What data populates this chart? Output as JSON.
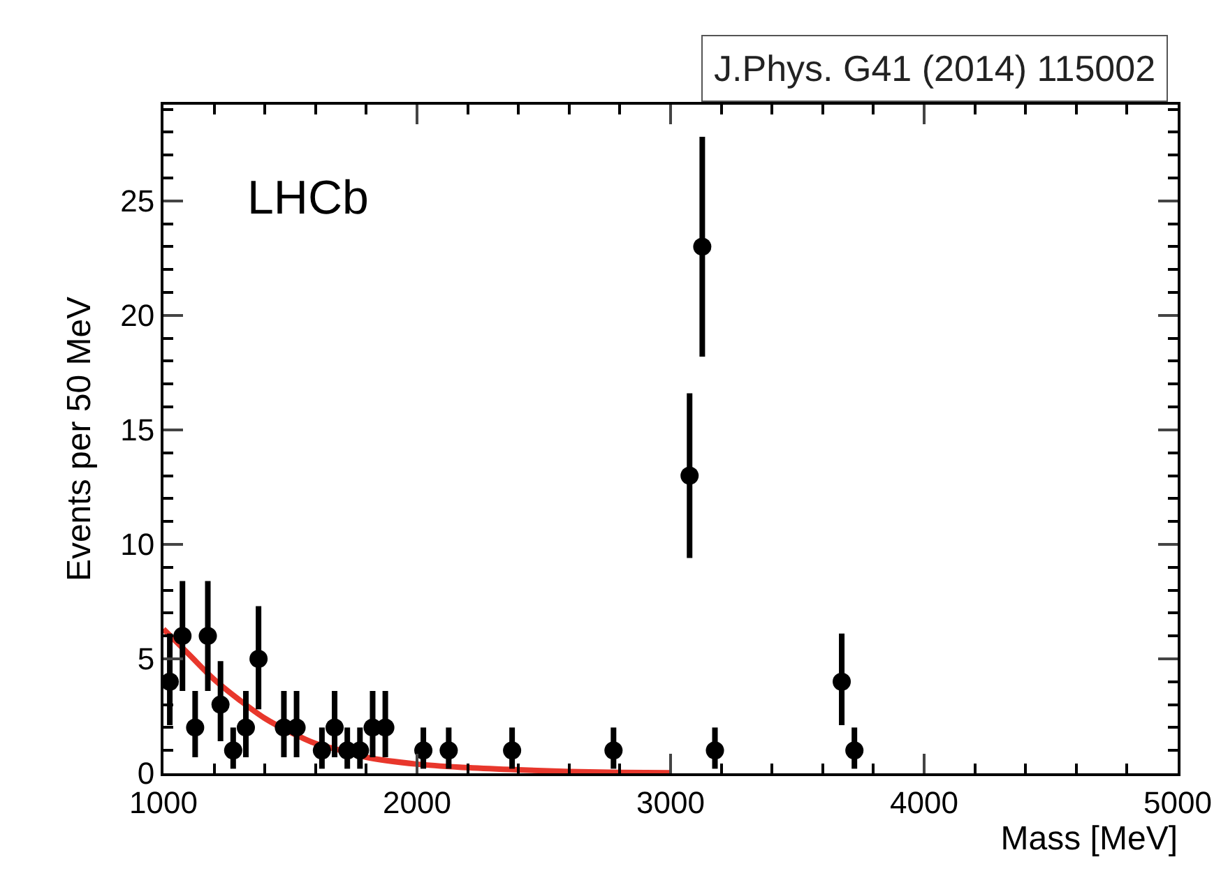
{
  "chart_data": {
    "type": "scatter",
    "xlabel": "Mass [MeV]",
    "ylabel": "Events per 50 MeV",
    "annotations": [
      "LHCb",
      "J.Phys. G41 (2014) 115002"
    ],
    "xlim": [
      1000,
      5000
    ],
    "xticks": [
      1000,
      2000,
      3000,
      4000,
      5000
    ],
    "ylim": [
      0,
      29.2
    ],
    "yticks": [
      0,
      5,
      10,
      15,
      20,
      25
    ],
    "marker": "circle",
    "series": [
      {
        "color": "#000000",
        "x": [
          1025,
          1075,
          1125,
          1175,
          1225,
          1275,
          1325,
          1375,
          1475,
          1525,
          1625,
          1675,
          1725,
          1775,
          1825,
          1875,
          2025,
          2125,
          2375,
          2775,
          3075,
          3125,
          3175,
          3675,
          3725
        ],
        "values": [
          4,
          6,
          2,
          6,
          3,
          1,
          2,
          5,
          2,
          2,
          1,
          2,
          1,
          1,
          2,
          2,
          1,
          1,
          1,
          1,
          13,
          23,
          1,
          4,
          1
        ],
        "errors": [
          [
            2.1,
            6.1
          ],
          [
            3.6,
            8.4
          ],
          [
            0.7,
            3.6
          ],
          [
            3.6,
            8.4
          ],
          [
            1.4,
            4.9
          ],
          [
            0.2,
            2.0
          ],
          [
            0.7,
            3.6
          ],
          [
            2.8,
            7.3
          ],
          [
            0.7,
            3.6
          ],
          [
            0.7,
            3.6
          ],
          [
            0.2,
            2.0
          ],
          [
            0.7,
            3.6
          ],
          [
            0.2,
            2.0
          ],
          [
            0.2,
            2.0
          ],
          [
            0.7,
            3.6
          ],
          [
            0.7,
            3.6
          ],
          [
            0.2,
            2.0
          ],
          [
            0.2,
            2.0
          ],
          [
            0.2,
            2.0
          ],
          [
            0.2,
            2.0
          ],
          [
            9.4,
            16.6
          ],
          [
            18.2,
            27.8
          ],
          [
            0.2,
            2.0
          ],
          [
            2.1,
            6.1
          ],
          [
            0.2,
            2.0
          ]
        ]
      },
      {
        "type": "line",
        "color": "#e8372c",
        "line_style": "solid",
        "marker": "none",
        "x": [
          1000,
          1100,
          1200,
          1300,
          1400,
          1500,
          1600,
          1700,
          1800,
          2000,
          2200,
          2400,
          2600,
          2800,
          3000
        ],
        "values": [
          6.3,
          5.2,
          4.1,
          3.2,
          2.4,
          1.8,
          1.3,
          1.0,
          0.7,
          0.4,
          0.25,
          0.15,
          0.08,
          0.04,
          0.02
        ]
      }
    ]
  }
}
